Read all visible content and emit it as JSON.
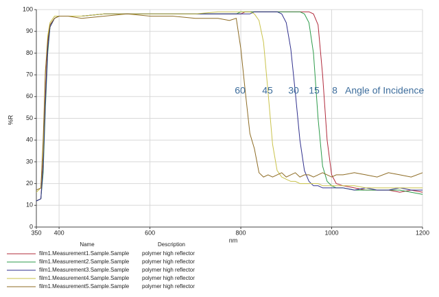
{
  "chart_data": {
    "type": "line",
    "x_label": "nm",
    "y_label": "%R",
    "x": [
      350,
      360,
      365,
      370,
      375,
      380,
      390,
      400,
      420,
      450,
      500,
      550,
      600,
      650,
      700,
      750,
      775,
      790,
      800,
      810,
      820,
      830,
      840,
      850,
      860,
      870,
      880,
      890,
      900,
      910,
      920,
      930,
      940,
      950,
      960,
      970,
      980,
      990,
      1000,
      1010,
      1025,
      1050,
      1075,
      1100,
      1125,
      1150,
      1175,
      1200
    ],
    "xlim": [
      350,
      1200
    ],
    "xticks": [
      350,
      400,
      600,
      800,
      1000,
      1200
    ],
    "ylim": [
      0,
      100
    ],
    "yticks": [
      0,
      10,
      20,
      30,
      40,
      50,
      60,
      70,
      80,
      90,
      100
    ],
    "grid": true,
    "annotations": [
      "60",
      "45",
      "30",
      "15",
      "8",
      "Angle of Incidence"
    ],
    "legend_headers": [
      "Name",
      "Description"
    ],
    "series": [
      {
        "name": "film1.Measurement1.Sample.Sample",
        "description": "polymer high reflector",
        "color": "#b0283a",
        "values": [
          12,
          13,
          30,
          60,
          85,
          93,
          96,
          97,
          97,
          97,
          98,
          98,
          98,
          98,
          98,
          98,
          98,
          98,
          98,
          99,
          99,
          99,
          99,
          99,
          99,
          99,
          99,
          99,
          99,
          99,
          99,
          99,
          99,
          99,
          98,
          93,
          70,
          40,
          24,
          20,
          19,
          18,
          17,
          17,
          17,
          16,
          17,
          16
        ]
      },
      {
        "name": "film1.Measurement2.Sample.Sample",
        "description": "polymer high reflector",
        "color": "#2a9a48",
        "values": [
          12,
          13,
          25,
          55,
          80,
          92,
          96,
          97,
          97,
          97,
          98,
          98,
          98,
          98,
          98,
          98,
          98,
          98,
          99,
          99,
          99,
          99,
          99,
          99,
          99,
          99,
          99,
          99,
          99,
          99,
          99,
          99,
          98,
          94,
          80,
          50,
          28,
          21,
          19,
          18,
          18,
          17,
          17,
          17,
          17,
          17,
          16,
          15
        ]
      },
      {
        "name": "film1.Measurement3.Sample.Sample",
        "description": "polymer high reflector",
        "color": "#2e2e8c",
        "values": [
          12,
          13,
          28,
          58,
          82,
          92,
          96,
          97,
          97,
          97,
          98,
          98,
          98,
          98,
          98,
          98,
          98,
          98,
          98,
          98,
          98,
          99,
          99,
          99,
          99,
          99,
          99,
          98,
          94,
          82,
          62,
          40,
          26,
          21,
          19,
          19,
          18,
          18,
          18,
          18,
          18,
          17,
          18,
          17,
          17,
          18,
          17,
          17
        ]
      },
      {
        "name": "film1.Measurement4.Sample.Sample",
        "description": "polymer high reflector",
        "color": "#c9c24a",
        "values": [
          16,
          18,
          35,
          70,
          88,
          94,
          97,
          97,
          97,
          97,
          98,
          98,
          98,
          98,
          98,
          99,
          99,
          99,
          99,
          99,
          99,
          98,
          95,
          85,
          62,
          38,
          26,
          23,
          22,
          21,
          21,
          20,
          20,
          20,
          20,
          20,
          19,
          19,
          19,
          19,
          19,
          19,
          18,
          18,
          18,
          18,
          18,
          18
        ]
      },
      {
        "name": "film1.Measurement5.Sample.Sample",
        "description": "polymer high reflector",
        "color": "#8c6a22",
        "values": [
          17,
          18,
          40,
          72,
          86,
          93,
          96,
          97,
          97,
          96,
          97,
          98,
          97,
          97,
          96,
          96,
          95,
          96,
          82,
          62,
          43,
          36,
          25,
          23,
          24,
          23,
          24,
          25,
          23,
          24,
          25,
          23,
          24,
          24,
          23,
          24,
          25,
          24,
          23,
          24,
          24,
          25,
          24,
          23,
          25,
          24,
          23,
          25
        ]
      }
    ]
  }
}
